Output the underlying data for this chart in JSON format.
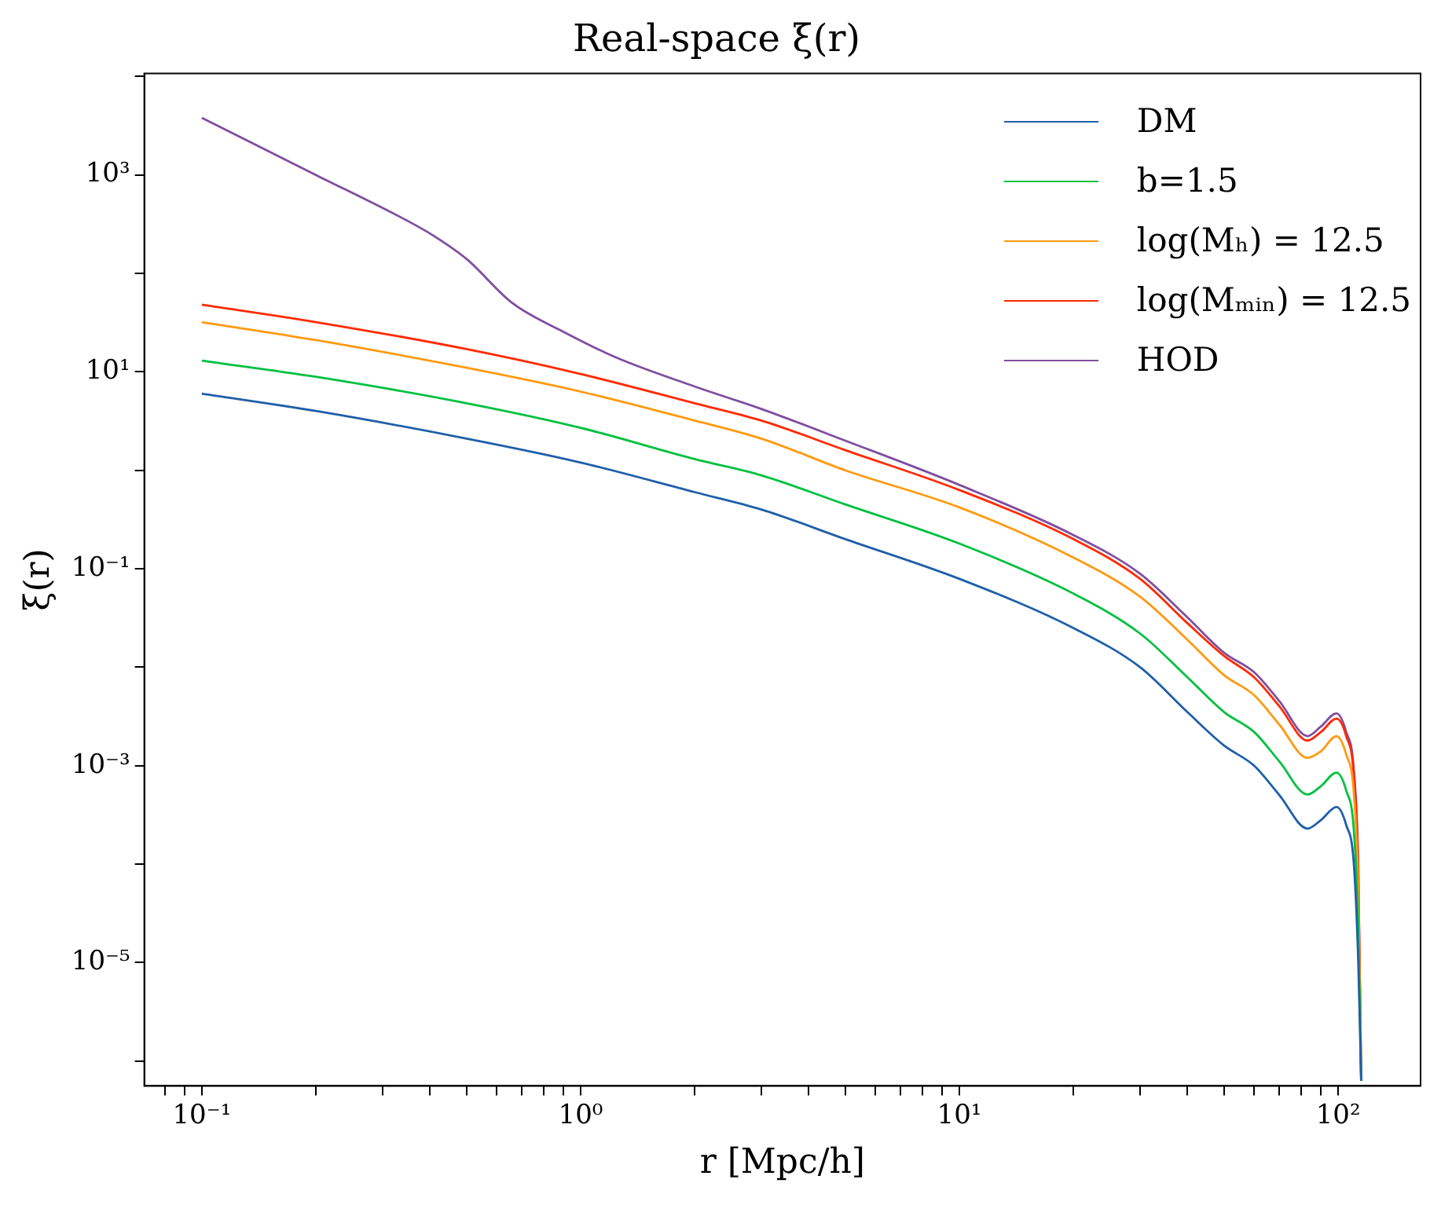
{
  "chart_data": {
    "type": "line",
    "title": "Real-space ξ(r)",
    "xlabel": "r [Mpc/h]",
    "ylabel": "ξ(r)",
    "log": "xy",
    "grid": false,
    "legend": "top right",
    "marker": "none",
    "line_style": "solid",
    "x": [
      0.1,
      0.2,
      0.5,
      1,
      2,
      3,
      5,
      10,
      20,
      30,
      40,
      50,
      60,
      70,
      83,
      90,
      99,
      105,
      110,
      113,
      115
    ],
    "xlim": [
      0.0705,
      165
    ],
    "ylim": [
      5.6e-07,
      10700
    ],
    "xticks": [
      {
        "value": 0.08,
        "label": null
      },
      {
        "value": 0.09,
        "label": null
      },
      {
        "value": 0.1,
        "label": "10⁻¹"
      },
      {
        "value": 0.2,
        "label": null
      },
      {
        "value": 0.3,
        "label": null
      },
      {
        "value": 0.4,
        "label": null
      },
      {
        "value": 0.5,
        "label": null
      },
      {
        "value": 0.6,
        "label": null
      },
      {
        "value": 0.7,
        "label": null
      },
      {
        "value": 0.8,
        "label": null
      },
      {
        "value": 0.9,
        "label": null
      },
      {
        "value": 1,
        "label": "10⁰"
      },
      {
        "value": 2,
        "label": null
      },
      {
        "value": 3,
        "label": null
      },
      {
        "value": 4,
        "label": null
      },
      {
        "value": 5,
        "label": null
      },
      {
        "value": 6,
        "label": null
      },
      {
        "value": 7,
        "label": null
      },
      {
        "value": 8,
        "label": null
      },
      {
        "value": 9,
        "label": null
      },
      {
        "value": 10,
        "label": "10¹"
      },
      {
        "value": 20,
        "label": null
      },
      {
        "value": 30,
        "label": null
      },
      {
        "value": 40,
        "label": null
      },
      {
        "value": 50,
        "label": null
      },
      {
        "value": 60,
        "label": null
      },
      {
        "value": 70,
        "label": null
      },
      {
        "value": 80,
        "label": null
      },
      {
        "value": 90,
        "label": null
      },
      {
        "value": 100,
        "label": "10²"
      }
    ],
    "yticks": [
      {
        "value": 1e-06,
        "label": null
      },
      {
        "value": 1e-05,
        "label": "10⁻⁵"
      },
      {
        "value": 0.0001,
        "label": null
      },
      {
        "value": 0.001,
        "label": "10⁻³"
      },
      {
        "value": 0.01,
        "label": null
      },
      {
        "value": 0.1,
        "label": "10⁻¹"
      },
      {
        "value": 1,
        "label": null
      },
      {
        "value": 10,
        "label": "10¹"
      },
      {
        "value": 100,
        "label": null
      },
      {
        "value": 1000,
        "label": "10³"
      },
      {
        "value": 10000,
        "label": null
      }
    ],
    "series": [
      {
        "name": "DM",
        "color": "#1f5fa8",
        "values": [
          6.0,
          4.0,
          2.1,
          1.2,
          0.6,
          0.4,
          0.2,
          0.079,
          0.025,
          0.01,
          0.0035,
          0.0016,
          0.001,
          0.0005,
          0.00023,
          0.00028,
          0.00038,
          0.00025,
          0.0001,
          1e-05,
          6.3e-07
        ]
      },
      {
        "name": "b=1.5",
        "color": "#00c040",
        "values": [
          13,
          8.9,
          4.8,
          2.7,
          1.3,
          0.89,
          0.45,
          0.18,
          0.056,
          0.022,
          0.0079,
          0.0035,
          0.0022,
          0.0011,
          0.00051,
          0.00062,
          0.00085,
          0.00056,
          0.00022,
          2.2e-05,
          6.3e-07
        ]
      },
      {
        "name": "log(Mₕ) = 12.5",
        "color": "#ff9a10",
        "values": [
          32,
          21,
          11,
          6.3,
          3.2,
          2.1,
          1.0,
          0.42,
          0.13,
          0.052,
          0.019,
          0.0083,
          0.0052,
          0.0026,
          0.0012,
          0.0014,
          0.002,
          0.0013,
          0.00052,
          5.2e-05,
          6.3e-07
        ]
      },
      {
        "name": "log(Mₘᵢₙ) = 12.5",
        "color": "#ff2a00",
        "values": [
          48,
          32,
          17,
          9.5,
          4.8,
          3.2,
          1.6,
          0.63,
          0.2,
          0.079,
          0.028,
          0.013,
          0.0079,
          0.004,
          0.0018,
          0.0022,
          0.003,
          0.002,
          0.00079,
          7.9e-05,
          6.3e-07
        ]
      },
      {
        "name": "HOD",
        "color": "#7f4f9f",
        "x": [
          0.1,
          0.2,
          0.35,
          0.41,
          0.5,
          0.66,
          0.91,
          1.24,
          2,
          3,
          5,
          10,
          20,
          30,
          40,
          50,
          60,
          70,
          83,
          90,
          99,
          105,
          110,
          113,
          115
        ],
        "values": [
          3800,
          1000,
          340,
          240,
          140,
          50,
          25,
          14,
          7.1,
          4.2,
          2.0,
          0.71,
          0.22,
          0.089,
          0.032,
          0.014,
          0.0089,
          0.0045,
          0.002,
          0.0025,
          0.0034,
          0.0022,
          0.00089,
          8.9e-05,
          6.3e-07
        ]
      }
    ]
  }
}
